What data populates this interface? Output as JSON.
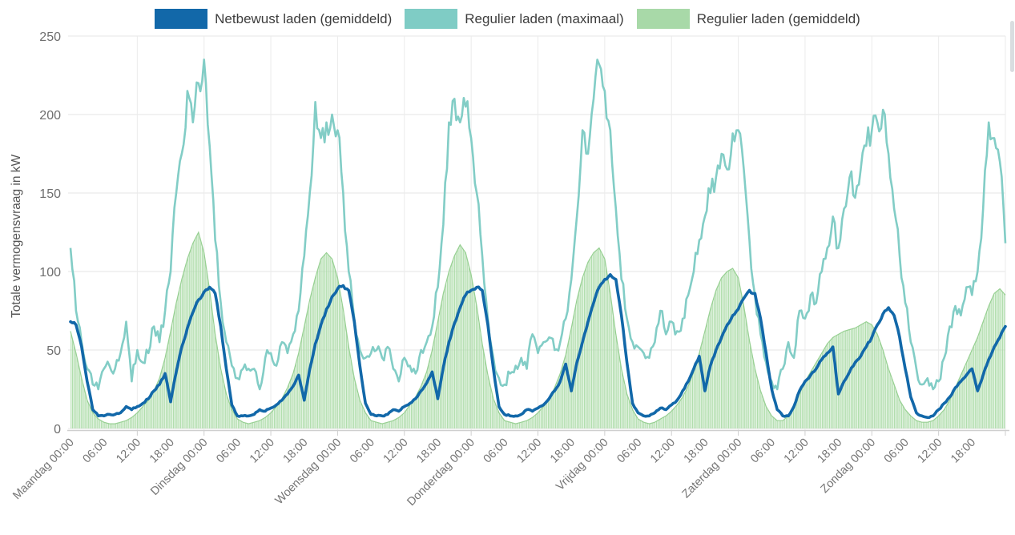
{
  "legend": {
    "items": [
      {
        "key": "netbewust_gemiddeld",
        "label": "Netbewust laden (gemiddeld)",
        "color": "#1268a9"
      },
      {
        "key": "regulier_maximaal",
        "label": "Regulier laden (maximaal)",
        "color": "#7fccc5"
      },
      {
        "key": "regulier_gemiddeld",
        "label": "Regulier laden (gemiddeld)",
        "color": "#a8d9a8"
      }
    ]
  },
  "y_axis": {
    "title": "Totale vermogensvraag in kW",
    "ticks": [
      0,
      50,
      100,
      150,
      200,
      250
    ],
    "min": 0,
    "max": 250
  },
  "x_axis": {
    "tick_interval_hours": 6,
    "gridline_interval_hours": 12,
    "labels": [
      "Maandag 00:00",
      "06:00",
      "12:00",
      "18:00",
      "Dinsdag 00:00",
      "06:00",
      "12:00",
      "18:00",
      "Woensdag 00:00",
      "06:00",
      "12:00",
      "18:00",
      "Donderdag 00:00",
      "06:00",
      "12:00",
      "18:00",
      "Vrijdag 00:00",
      "06:00",
      "12:00",
      "18:00",
      "Zaterdag 00:00",
      "06:00",
      "12:00",
      "18:00",
      "Zondag 00:00",
      "06:00",
      "12:00",
      "18:00"
    ]
  },
  "chart_data": {
    "type": "line",
    "title": "",
    "xlabel": "",
    "ylabel": "Totale vermogensvraag in kW",
    "x_unit": "hours_from_maandag_00:00",
    "x_step_hours": 1,
    "x_range": [
      0,
      168
    ],
    "ylim": [
      0,
      250
    ],
    "grid": {
      "horizontal_every_kw": 50,
      "vertical_every_hours": 12
    },
    "legend_position": "top-center",
    "series": [
      {
        "name": "Regulier laden (gemiddeld)",
        "type": "area-bars",
        "fill": "#aedcaa",
        "edge": "#98d093",
        "jitter_kw": 0,
        "values": [
          62,
          48,
          32,
          18,
          10,
          6,
          4,
          3,
          3,
          4,
          5,
          7,
          10,
          14,
          18,
          24,
          32,
          45,
          62,
          80,
          95,
          108,
          118,
          125,
          112,
          88,
          60,
          38,
          22,
          12,
          6,
          4,
          3,
          4,
          5,
          7,
          10,
          14,
          19,
          26,
          35,
          48,
          65,
          82,
          96,
          108,
          112,
          108,
          96,
          76,
          52,
          32,
          18,
          10,
          5,
          4,
          3,
          4,
          5,
          7,
          10,
          15,
          20,
          27,
          36,
          50,
          68,
          86,
          100,
          110,
          117,
          112,
          98,
          78,
          54,
          34,
          19,
          10,
          5,
          4,
          3,
          4,
          5,
          7,
          10,
          14,
          19,
          26,
          35,
          47,
          64,
          82,
          96,
          106,
          112,
          115,
          108,
          86,
          60,
          38,
          22,
          12,
          6,
          4,
          3,
          4,
          6,
          8,
          11,
          15,
          20,
          27,
          36,
          48,
          62,
          76,
          88,
          96,
          100,
          102,
          96,
          78,
          56,
          38,
          24,
          14,
          8,
          5,
          5,
          8,
          14,
          22,
          30,
          36,
          42,
          48,
          54,
          58,
          60,
          62,
          63,
          64,
          66,
          68,
          66,
          60,
          50,
          38,
          28,
          18,
          12,
          8,
          5,
          4,
          4,
          5,
          8,
          12,
          18,
          26,
          34,
          42,
          50,
          58,
          68,
          78,
          86,
          89,
          85
        ]
      },
      {
        "name": "Regulier laden (maximaal)",
        "type": "line",
        "color": "#82cdc6",
        "width": 2.6,
        "jitter_kw": 7,
        "values": [
          115,
          75,
          55,
          38,
          28,
          25,
          38,
          40,
          38,
          48,
          68,
          30,
          50,
          42,
          48,
          65,
          55,
          75,
          100,
          150,
          175,
          215,
          195,
          220,
          235,
          180,
          120,
          80,
          55,
          40,
          32,
          38,
          38,
          38,
          25,
          45,
          48,
          40,
          55,
          48,
          60,
          75,
          110,
          150,
          208,
          185,
          195,
          200,
          190,
          150,
          100,
          70,
          50,
          45,
          48,
          50,
          45,
          52,
          38,
          30,
          45,
          40,
          35,
          50,
          55,
          65,
          90,
          130,
          195,
          210,
          195,
          205,
          185,
          150,
          110,
          70,
          45,
          32,
          28,
          35,
          40,
          45,
          38,
          60,
          48,
          55,
          58,
          50,
          55,
          70,
          95,
          135,
          190,
          175,
          210,
          232,
          215,
          190,
          140,
          95,
          70,
          55,
          52,
          48,
          45,
          55,
          75,
          60,
          68,
          62,
          70,
          85,
          100,
          120,
          135,
          150,
          160,
          175,
          165,
          188,
          190,
          165,
          120,
          85,
          60,
          42,
          30,
          25,
          38,
          55,
          45,
          75,
          70,
          85,
          80,
          100,
          115,
          135,
          115,
          140,
          160,
          147,
          165,
          180,
          190,
          195,
          203,
          175,
          140,
          110,
          80,
          55,
          38,
          28,
          32,
          25,
          30,
          45,
          65,
          78,
          72,
          90,
          85,
          100,
          140,
          195,
          185,
          170,
          118
        ]
      },
      {
        "name": "Netbewust laden (gemiddeld)",
        "type": "line",
        "color": "#1268a9",
        "width": 3.6,
        "jitter_kw": 1.2,
        "values": [
          68,
          66,
          52,
          30,
          12,
          8,
          8,
          9,
          9,
          10,
          14,
          12,
          14,
          16,
          19,
          24,
          28,
          35,
          17,
          36,
          52,
          64,
          74,
          82,
          87,
          90,
          86,
          65,
          38,
          15,
          8,
          8,
          8,
          9,
          12,
          11,
          13,
          15,
          18,
          22,
          27,
          34,
          18,
          38,
          54,
          66,
          76,
          84,
          89,
          91,
          88,
          68,
          40,
          16,
          9,
          8,
          8,
          9,
          12,
          11,
          14,
          16,
          19,
          24,
          29,
          36,
          19,
          39,
          55,
          67,
          77,
          85,
          88,
          90,
          88,
          66,
          38,
          14,
          9,
          8,
          8,
          9,
          12,
          11,
          13,
          15,
          19,
          24,
          30,
          41,
          24,
          42,
          55,
          68,
          80,
          90,
          95,
          98,
          95,
          72,
          42,
          16,
          10,
          8,
          8,
          10,
          13,
          12,
          15,
          18,
          24,
          30,
          38,
          46,
          24,
          40,
          50,
          58,
          66,
          72,
          76,
          83,
          88,
          86,
          70,
          48,
          25,
          12,
          8,
          8,
          14,
          24,
          30,
          34,
          38,
          44,
          48,
          52,
          22,
          30,
          36,
          42,
          46,
          52,
          58,
          66,
          73,
          77,
          72,
          58,
          38,
          20,
          10,
          8,
          7,
          8,
          12,
          16,
          20,
          26,
          30,
          34,
          38,
          24,
          34,
          44,
          52,
          58,
          65
        ]
      }
    ]
  },
  "colors": {
    "gridline": "#e6e6e6",
    "axis_line": "#cfcfcf",
    "tick_label": "#757575",
    "y_tick_label": "#6e6e6e",
    "legend_text": "#3d3d3d"
  }
}
